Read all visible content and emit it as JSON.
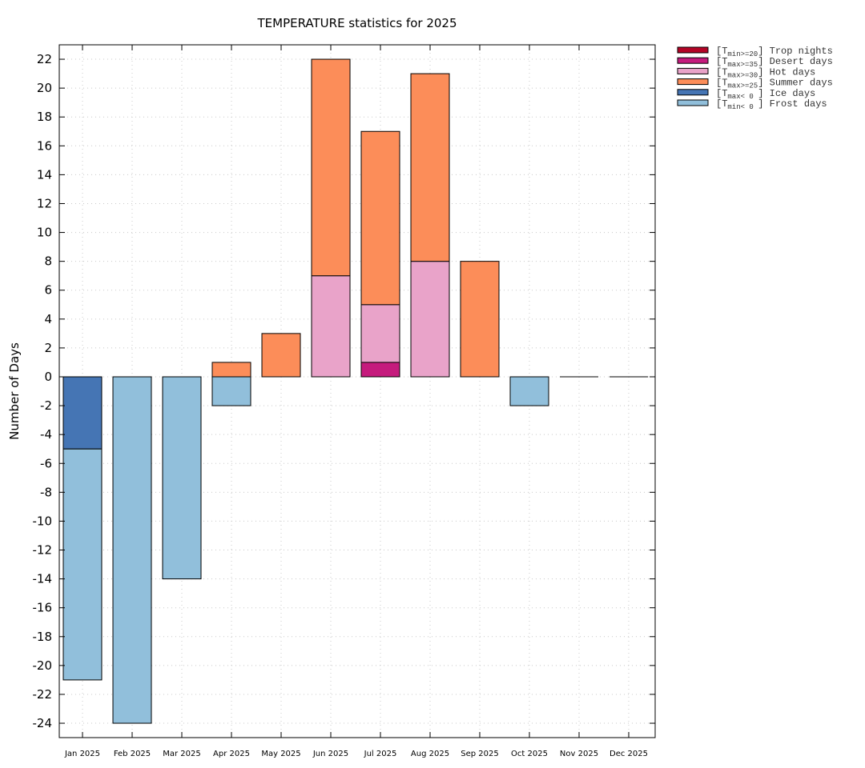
{
  "chart_data": {
    "type": "bar",
    "stacked": true,
    "title": "TEMPERATURE statistics for 2025",
    "xlabel": "",
    "ylabel": "Number of Days",
    "ylim": [
      -25,
      23
    ],
    "yticks": [
      22,
      20,
      18,
      16,
      14,
      12,
      10,
      8,
      6,
      4,
      2,
      0,
      -2,
      -4,
      -6,
      -8,
      -10,
      -12,
      -14,
      -16,
      -18,
      -20,
      -22,
      -24
    ],
    "grid": true,
    "legend_position": "outside-top-right",
    "categories": [
      "Jan 2025",
      "Feb 2025",
      "Mar 2025",
      "Apr 2025",
      "May 2025",
      "Jun 2025",
      "Jul 2025",
      "Aug 2025",
      "Sep 2025",
      "Oct 2025",
      "Nov 2025",
      "Dec 2025"
    ],
    "series": [
      {
        "name": "Trop nights",
        "condition_main": "T",
        "condition_sub": "min>=20",
        "color": "#b40426",
        "direction": "positive",
        "values": [
          0,
          0,
          0,
          0,
          0,
          0,
          0,
          0,
          0,
          0,
          0,
          0
        ]
      },
      {
        "name": "Desert days",
        "condition_main": "T",
        "condition_sub": "max>=35",
        "color": "#c51b7d",
        "direction": "positive",
        "values": [
          0,
          0,
          0,
          0,
          0,
          0,
          1,
          0,
          0,
          0,
          0,
          0
        ]
      },
      {
        "name": "Hot days",
        "condition_main": "T",
        "condition_sub": "max>=30",
        "color": "#e9a3c9",
        "direction": "positive",
        "values": [
          0,
          0,
          0,
          0,
          0,
          7,
          4,
          8,
          0,
          0,
          0,
          0
        ]
      },
      {
        "name": "Summer days",
        "condition_main": "T",
        "condition_sub": "max>=25",
        "color": "#fc8d59",
        "direction": "positive",
        "values": [
          0,
          0,
          0,
          1,
          3,
          15,
          12,
          13,
          8,
          0,
          0,
          0
        ]
      },
      {
        "name": "Ice days",
        "condition_main": "T",
        "condition_sub": "max< 0 ",
        "color": "#4575b4",
        "direction": "negative",
        "values": [
          5,
          0,
          0,
          0,
          0,
          0,
          0,
          0,
          0,
          0,
          0,
          0
        ]
      },
      {
        "name": "Frost days",
        "condition_main": "T",
        "condition_sub": "min< 0 ",
        "color": "#91bfdb",
        "direction": "negative",
        "values": [
          16,
          24,
          14,
          2,
          0,
          0,
          0,
          0,
          0,
          2,
          0,
          0
        ]
      }
    ],
    "totals_positive": [
      0,
      0,
      0,
      1,
      3,
      22,
      17,
      21,
      8,
      0,
      0,
      0
    ],
    "totals_negative": [
      -21,
      -24,
      -14,
      -2,
      0,
      0,
      0,
      0,
      0,
      -2,
      0,
      0
    ]
  }
}
